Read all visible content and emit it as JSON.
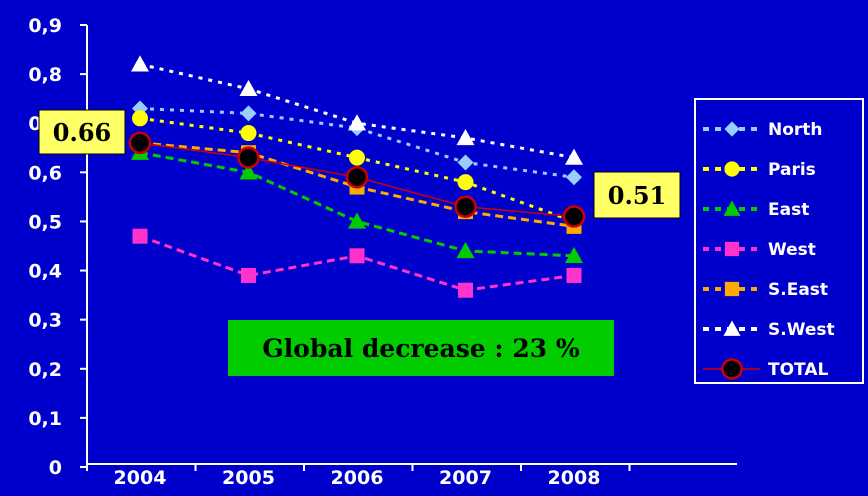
{
  "colors": {
    "background": "#0000cc",
    "axis": "#ffffff",
    "callout_fill": "#ffff66",
    "banner_fill": "#00cc00"
  },
  "chart_data": {
    "type": "line",
    "title": "",
    "xlabel": "",
    "ylabel": "",
    "categories": [
      "2004",
      "2005",
      "2006",
      "2007",
      "2008"
    ],
    "ylim": [
      0,
      0.9
    ],
    "y_ticks": [
      "0",
      "0,1",
      "0,2",
      "0,3",
      "0,4",
      "0,5",
      "0,6",
      "0,7",
      "0,8",
      "0,9"
    ],
    "grid": false,
    "legend_position": "right",
    "series": [
      {
        "name": "North",
        "values": [
          0.73,
          0.72,
          0.69,
          0.62,
          0.59
        ],
        "color": "#99ccff",
        "marker": "diamond",
        "line": "dotted"
      },
      {
        "name": "Paris",
        "values": [
          0.71,
          0.68,
          0.63,
          0.58,
          0.5
        ],
        "color": "#ffff00",
        "marker": "circle",
        "line": "dotted"
      },
      {
        "name": "East",
        "values": [
          0.64,
          0.6,
          0.5,
          0.44,
          0.43
        ],
        "color": "#00cc00",
        "marker": "triangle",
        "line": "dashed"
      },
      {
        "name": "West",
        "values": [
          0.47,
          0.39,
          0.43,
          0.36,
          0.39
        ],
        "color": "#ff33cc",
        "marker": "square",
        "line": "dashed"
      },
      {
        "name": "S.East",
        "values": [
          0.66,
          0.64,
          0.57,
          0.52,
          0.49
        ],
        "color": "#ffaa00",
        "marker": "square",
        "line": "dashed"
      },
      {
        "name": "S.West",
        "values": [
          0.82,
          0.77,
          0.7,
          0.67,
          0.63
        ],
        "color": "#ffffff",
        "marker": "triangle",
        "line": "dotted"
      },
      {
        "name": "TOTAL",
        "values": [
          0.66,
          0.63,
          0.59,
          0.53,
          0.51
        ],
        "color": "#cc0000",
        "marker": "circle-dark",
        "line": "solid"
      }
    ],
    "annotations": {
      "start_label": "0.66",
      "end_label": "0.51",
      "banner": "Global decrease : 23 %"
    }
  }
}
